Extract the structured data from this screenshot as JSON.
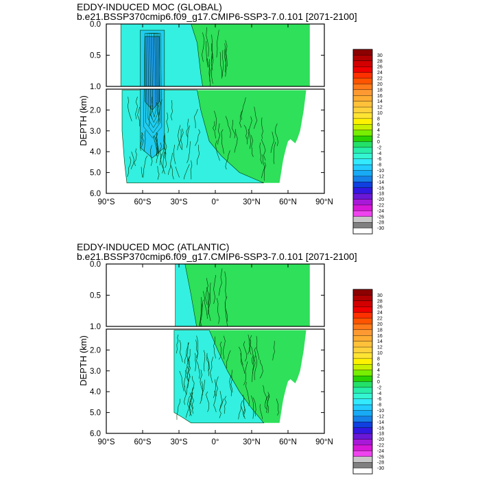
{
  "chart_data": [
    {
      "type": "heatmap",
      "title": "EDDY-INDUCED MOC (GLOBAL)",
      "subtitle": "b.e21.BSSP370cmip6.f09_g17.CMIP6-SSP3-7.0.101 [2071-2100]",
      "ylabel": "DEPTH (km)",
      "upper_yticks": [
        "0.0",
        "0.5",
        "1.0"
      ],
      "lower_yticks": [
        "2.0",
        "3.0",
        "4.0",
        "5.0",
        "6.0"
      ],
      "xticks": [
        "90°S",
        "60°S",
        "30°S",
        "0°",
        "30°N",
        "60°N",
        "90°N"
      ],
      "xlim": [
        -90,
        90
      ],
      "ylim": [
        0,
        6
      ],
      "fields": {
        "extent": {
          "upper": [
            [
              -78,
              0
            ],
            [
              78,
              0
            ],
            [
              78,
              1.05
            ],
            [
              -78,
              1.05
            ]
          ],
          "lower": [
            [
              -77,
              1.05
            ],
            [
              75,
              1.05
            ],
            [
              73,
              2.0
            ],
            [
              70,
              3.0
            ],
            [
              68,
              3.35
            ],
            [
              66,
              3.6
            ],
            [
              62,
              3.4
            ],
            [
              60,
              3.5
            ],
            [
              58,
              3.9
            ],
            [
              56,
              4.4
            ],
            [
              53,
              5.5
            ],
            [
              -73,
              5.5
            ],
            [
              -75,
              4.5
            ],
            [
              -77,
              3.0
            ]
          ]
        },
        "negative": {
          "upper": [
            [
              -78,
              0
            ],
            [
              -20,
              0
            ],
            [
              -15,
              0.3
            ],
            [
              -12,
              0.8
            ],
            [
              -10,
              1.05
            ],
            [
              -78,
              1.05
            ]
          ],
          "lower": [
            [
              -77,
              1.05
            ],
            [
              -15,
              1.05
            ],
            [
              -12,
              2.0
            ],
            [
              -5,
              3.5
            ],
            [
              5,
              4.2
            ],
            [
              20,
              5.0
            ],
            [
              40,
              5.5
            ],
            [
              -73,
              5.5
            ],
            [
              -75,
              4.5
            ],
            [
              -77,
              3.0
            ]
          ]
        },
        "cell": [
          [
            -62,
            0.1
          ],
          [
            -42,
            0.1
          ],
          [
            -42,
            3.8
          ],
          [
            -52,
            4.3
          ],
          [
            -62,
            3.8
          ]
        ],
        "core": [
          [
            -58,
            0.2
          ],
          [
            -46,
            0.2
          ],
          [
            -46,
            1.6
          ],
          [
            -52,
            2.0
          ],
          [
            -58,
            1.6
          ]
        ]
      }
    },
    {
      "type": "heatmap",
      "title": "EDDY-INDUCED MOC (ATLANTIC)",
      "subtitle": "b.e21.BSSP370cmip6.f09_g17.CMIP6-SSP3-7.0.101 [2071-2100]",
      "ylabel": "DEPTH (km)",
      "upper_yticks": [
        "0.0",
        "0.5",
        "1.0"
      ],
      "lower_yticks": [
        "2.0",
        "3.0",
        "4.0",
        "5.0",
        "6.0"
      ],
      "xticks": [
        "90°S",
        "60°S",
        "30°S",
        "0°",
        "30°N",
        "60°N",
        "90°N"
      ],
      "xlim": [
        -90,
        90
      ],
      "ylim": [
        0,
        6
      ],
      "fields": {
        "extent": {
          "upper": [
            [
              -33,
              0
            ],
            [
              78,
              0
            ],
            [
              78,
              1.05
            ],
            [
              -33,
              1.05
            ]
          ],
          "lower": [
            [
              -34,
              1.05
            ],
            [
              75,
              1.05
            ],
            [
              73,
              2.0
            ],
            [
              70,
              3.0
            ],
            [
              68,
              3.35
            ],
            [
              66,
              3.6
            ],
            [
              62,
              3.4
            ],
            [
              60,
              3.5
            ],
            [
              58,
              3.9
            ],
            [
              56,
              4.4
            ],
            [
              53,
              5.5
            ],
            [
              -20,
              5.5
            ],
            [
              -28,
              5.2
            ],
            [
              -34,
              5.0
            ]
          ]
        },
        "negative": {
          "upper": [
            [
              -33,
              0
            ],
            [
              -25,
              0
            ],
            [
              -20,
              0.5
            ],
            [
              -15,
              1.05
            ],
            [
              -33,
              1.05
            ]
          ],
          "lower": [
            [
              -34,
              1.05
            ],
            [
              -5,
              1.05
            ],
            [
              2,
              2.0
            ],
            [
              10,
              3.0
            ],
            [
              20,
              4.0
            ],
            [
              30,
              4.8
            ],
            [
              40,
              5.5
            ],
            [
              -20,
              5.5
            ],
            [
              -28,
              5.2
            ],
            [
              -34,
              5.0
            ]
          ]
        },
        "cell": [],
        "core": []
      }
    }
  ],
  "colorbar": {
    "labels": [
      "30",
      "28",
      "26",
      "24",
      "22",
      "20",
      "18",
      "16",
      "14",
      "12",
      "10",
      "8",
      "6",
      "4",
      "2",
      "0",
      "-2",
      "-4",
      "-6",
      "-8",
      "-10",
      "-12",
      "-14",
      "-16",
      "-18",
      "-20",
      "-22",
      "-24",
      "-26",
      "-28",
      "-30"
    ],
    "colors": [
      "#8b0000",
      "#b00000",
      "#d20000",
      "#f00000",
      "#ff3000",
      "#ff5400",
      "#ff7a1a",
      "#ff9a33",
      "#ffad33",
      "#ffc13a",
      "#ffd23c",
      "#ffe433",
      "#fff200",
      "#c8f000",
      "#78ee00",
      "#27d200",
      "#22e068",
      "#27eeaa",
      "#33f5d2",
      "#33eaff",
      "#22ccff",
      "#18aaf5",
      "#1580e8",
      "#1040e0",
      "#3218e0",
      "#6a18d8",
      "#a818d8",
      "#d818d8",
      "#ee44ee",
      "#c8c8c8",
      "#808080",
      "#ffffff"
    ]
  },
  "colors": {
    "negative": "#33f0e0",
    "positive": "#2ee05a",
    "cell": "#20ccf2",
    "core": "#1e9ae8",
    "contour": "#003300"
  }
}
